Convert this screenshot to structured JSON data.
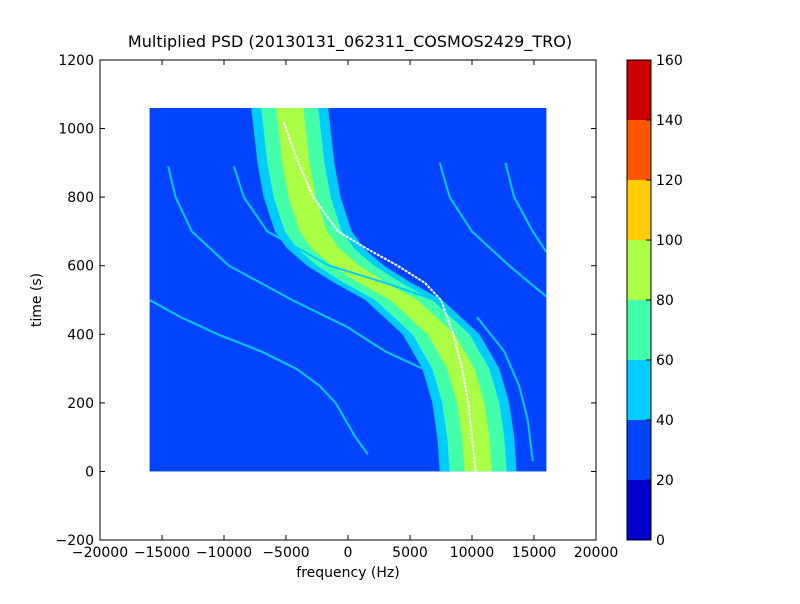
{
  "chart_data": {
    "type": "heatmap",
    "title": "Multiplied PSD (20130131_062311_COSMOS2429_TRO)",
    "xlabel": "frequency (Hz)",
    "ylabel": "time (s)",
    "xlim": [
      -20000,
      20000
    ],
    "ylim": [
      -200,
      1200
    ],
    "x_ticks": [
      -20000,
      -15000,
      -10000,
      -5000,
      0,
      5000,
      10000,
      15000,
      20000
    ],
    "x_tick_labels": [
      "−20000",
      "−15000",
      "−10000",
      "−5000",
      "0",
      "5000",
      "10000",
      "15000",
      "20000"
    ],
    "y_ticks": [
      -200,
      0,
      200,
      400,
      600,
      800,
      1000,
      1200
    ],
    "y_tick_labels": [
      "−200",
      "0",
      "200",
      "400",
      "600",
      "800",
      "1000",
      "1200"
    ],
    "grid": false,
    "data_extent": {
      "x": [
        -16000,
        16000
      ],
      "y": [
        0,
        1060
      ]
    },
    "background_level": 25,
    "colorbar": {
      "levels": [
        0,
        20,
        40,
        60,
        80,
        100,
        120,
        140,
        160
      ],
      "tick_labels": [
        "0",
        "20",
        "40",
        "60",
        "80",
        "100",
        "120",
        "140",
        "160"
      ],
      "colors": [
        "#0000cc",
        "#0044ff",
        "#00ccff",
        "#44ffaa",
        "#aaff44",
        "#ffcc00",
        "#ff5500",
        "#cc0000"
      ]
    },
    "main_trace": {
      "description_points_time": [
        0,
        100,
        200,
        300,
        400,
        500,
        550,
        600,
        650,
        700,
        800,
        900,
        1060
      ],
      "description_points_freq": [
        10500,
        10300,
        9900,
        9100,
        7500,
        4500,
        2000,
        -200,
        -1800,
        -2800,
        -3700,
        -4200,
        -4700
      ],
      "bands": [
        {
          "level": 45,
          "half_width_hz": 3100
        },
        {
          "level": 65,
          "half_width_hz": 2300
        },
        {
          "level": 85,
          "half_width_hz": 1100
        }
      ]
    },
    "white_trace": [
      {
        "t": 0,
        "f": 10300
      },
      {
        "t": 100,
        "f": 10000
      },
      {
        "t": 200,
        "f": 9700
      },
      {
        "t": 300,
        "f": 9200
      },
      {
        "t": 400,
        "f": 8500
      },
      {
        "t": 500,
        "f": 7500
      },
      {
        "t": 550,
        "f": 6200
      },
      {
        "t": 600,
        "f": 4000
      },
      {
        "t": 650,
        "f": 1500
      },
      {
        "t": 700,
        "f": -800
      },
      {
        "t": 800,
        "f": -2800
      },
      {
        "t": 900,
        "f": -4000
      },
      {
        "t": 1020,
        "f": -5200
      }
    ],
    "secondary_traces": [
      {
        "level": 45,
        "points": [
          {
            "t": 890,
            "f": -14500
          },
          {
            "t": 800,
            "f": -13900
          },
          {
            "t": 700,
            "f": -12600
          },
          {
            "t": 600,
            "f": -9600
          },
          {
            "t": 500,
            "f": -4500
          },
          {
            "t": 420,
            "f": 0
          },
          {
            "t": 350,
            "f": 3000
          },
          {
            "t": 300,
            "f": 6000
          }
        ]
      },
      {
        "level": 45,
        "points": [
          {
            "t": 890,
            "f": -9200
          },
          {
            "t": 800,
            "f": -8400
          },
          {
            "t": 700,
            "f": -6500
          },
          {
            "t": 600,
            "f": -1500
          },
          {
            "t": 550,
            "f": 3000
          },
          {
            "t": 500,
            "f": 7000
          },
          {
            "t": 400,
            "f": 10300
          },
          {
            "t": 300,
            "f": 11500
          },
          {
            "t": 200,
            "f": 12300
          },
          {
            "t": 100,
            "f": 12800
          },
          {
            "t": 50,
            "f": 13000
          }
        ]
      },
      {
        "level": 45,
        "points": [
          {
            "t": 900,
            "f": 7400
          },
          {
            "t": 800,
            "f": 8200
          },
          {
            "t": 700,
            "f": 10000
          },
          {
            "t": 600,
            "f": 13000
          },
          {
            "t": 510,
            "f": 16000
          }
        ]
      },
      {
        "level": 45,
        "points": [
          {
            "t": 900,
            "f": 12700
          },
          {
            "t": 800,
            "f": 13400
          },
          {
            "t": 700,
            "f": 14900
          },
          {
            "t": 640,
            "f": 16000
          }
        ]
      },
      {
        "level": 45,
        "points": [
          {
            "t": 500,
            "f": -16000
          },
          {
            "t": 450,
            "f": -13500
          },
          {
            "t": 400,
            "f": -10500
          },
          {
            "t": 350,
            "f": -7000
          },
          {
            "t": 300,
            "f": -4200
          },
          {
            "t": 250,
            "f": -2300
          },
          {
            "t": 200,
            "f": -1000
          },
          {
            "t": 100,
            "f": 600
          },
          {
            "t": 50,
            "f": 1600
          }
        ]
      },
      {
        "level": 45,
        "points": [
          {
            "t": 450,
            "f": 10400
          },
          {
            "t": 350,
            "f": 12600
          },
          {
            "t": 250,
            "f": 13800
          },
          {
            "t": 150,
            "f": 14500
          },
          {
            "t": 30,
            "f": 14900
          }
        ]
      }
    ]
  }
}
